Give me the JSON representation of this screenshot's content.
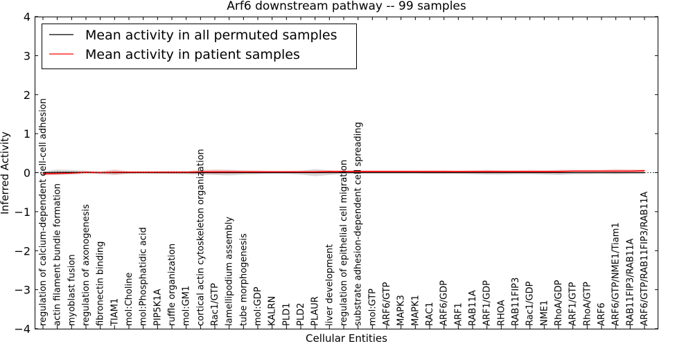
{
  "chart_data": {
    "type": "line",
    "title": "Arf6 downstream pathway -- 99 samples",
    "xlabel": "Cellular Entities",
    "ylabel": "Inferred Activity",
    "ylim": [
      -4,
      4
    ],
    "yticks": [
      -4,
      -3,
      -2,
      -1,
      0,
      1,
      2,
      3,
      4
    ],
    "ytick_labels": [
      "−4",
      "−3",
      "−2",
      "−1",
      "0",
      "1",
      "2",
      "3",
      "4"
    ],
    "legend_position": "top-left",
    "categories": [
      "regulation of calcium-dependent cell-cell adhesion",
      "actin filament bundle formation",
      "myoblast fusion",
      "regulation of axonogenesis",
      "fibronectin binding",
      "TIAM1",
      "mol:Choline",
      "mol:Phosphatidic acid",
      "PIP5K1A",
      "ruffle organization",
      "mol:GM1",
      "cortical actin cytoskeleton organization",
      "Rac1/GTP",
      "lamellipodium assembly",
      "tube morphogenesis",
      "mol:GDP",
      "KALRN",
      "PLD1",
      "PLD2",
      "PLAUR",
      "liver development",
      "regulation of epithelial cell migration",
      "substrate adhesion-dependent cell spreading",
      "mol:GTP",
      "ARF6/GTP",
      "MAPK3",
      "MAPK1",
      "RAC1",
      "ARF6/GDP",
      "ARF1",
      "RAB11A",
      "ARF1/GDP",
      "RHOA",
      "RAB11FIP3",
      "Rac1/GDP",
      "NME1",
      "RhoA/GDP",
      "ARF1/GTP",
      "RhoA/GTP",
      "ARF6",
      "ARF6/GTP/NME1/Tiam1",
      "RAB11FIP3/RAB11A",
      "ARF6/GTP/RAB11FIP3/RAB11A"
    ],
    "series": [
      {
        "name": "Mean activity in all permuted samples",
        "color": "#000000",
        "band_color": "#bbbbbb",
        "values": [
          0.0,
          0.01,
          0.01,
          0.01,
          0.0,
          0.0,
          0.0,
          0.0,
          0.0,
          0.0,
          0.0,
          0.0,
          0.0,
          0.0,
          0.0,
          0.0,
          0.0,
          0.0,
          0.0,
          0.0,
          0.0,
          0.0,
          0.0,
          0.0,
          0.0,
          0.0,
          0.0,
          0.0,
          0.0,
          0.0,
          0.0,
          0.0,
          0.0,
          0.0,
          0.0,
          0.0,
          0.0,
          0.0,
          0.0,
          0.0,
          0.0,
          0.0,
          0.0
        ],
        "band": [
          0.03,
          0.07,
          0.06,
          0.04,
          0.03,
          0.05,
          0.03,
          0.02,
          0.03,
          0.03,
          0.04,
          0.05,
          0.06,
          0.07,
          0.05,
          0.04,
          0.03,
          0.03,
          0.05,
          0.09,
          0.06,
          0.03,
          0.02,
          0.02,
          0.02,
          0.02,
          0.02,
          0.03,
          0.03,
          0.03,
          0.04,
          0.05,
          0.05,
          0.04,
          0.04,
          0.05,
          0.06,
          0.04,
          0.04,
          0.03,
          0.04,
          0.03,
          0.03
        ]
      },
      {
        "name": "Mean activity in patient samples",
        "color": "#ff0000",
        "band_color": "#e8a6a6",
        "values": [
          -0.03,
          -0.02,
          -0.01,
          0.01,
          0.0,
          0.01,
          0.01,
          0.01,
          0.01,
          0.01,
          0.01,
          0.02,
          0.02,
          0.02,
          0.02,
          0.02,
          0.02,
          0.02,
          0.02,
          0.02,
          0.03,
          0.03,
          0.03,
          0.03,
          0.03,
          0.03,
          0.03,
          0.03,
          0.03,
          0.03,
          0.03,
          0.03,
          0.03,
          0.03,
          0.03,
          0.03,
          0.03,
          0.04,
          0.04,
          0.04,
          0.04,
          0.04,
          0.05
        ],
        "band": [
          0.04,
          0.04,
          0.03,
          0.03,
          0.03,
          0.07,
          0.03,
          0.03,
          0.03,
          0.04,
          0.03,
          0.05,
          0.06,
          0.05,
          0.04,
          0.04,
          0.03,
          0.03,
          0.03,
          0.04,
          0.03,
          0.03,
          0.03,
          0.03,
          0.03,
          0.03,
          0.03,
          0.03,
          0.03,
          0.02,
          0.03,
          0.04,
          0.03,
          0.03,
          0.04,
          0.03,
          0.04,
          0.03,
          0.03,
          0.03,
          0.05,
          0.04,
          0.03
        ]
      }
    ]
  }
}
